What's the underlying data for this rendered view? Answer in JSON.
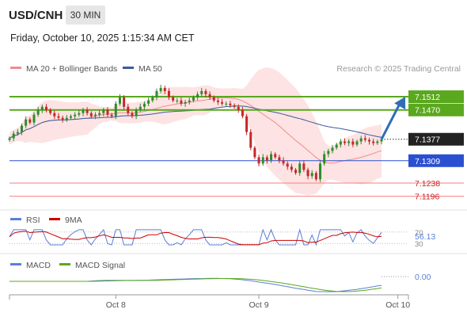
{
  "header": {
    "symbol": "USD/CNH",
    "timeframe": "30 MIN",
    "datetime": "Friday, October 10, 2025 1:15:34 AM CET"
  },
  "colors": {
    "ma20": "#f28c8c",
    "ma50": "#3b5b9c",
    "band_fill": "#fde0e0",
    "bull": "#2e8b2e",
    "bear": "#c62828",
    "resistance": "#5aa81e",
    "support_blue": "#2a4fd0",
    "support_red": "#f28080",
    "arrow": "#2f6db5",
    "rsi": "#5b7fd6",
    "rsi_ma": "#cc0000",
    "macd": "#5b7fd6",
    "macd_signal": "#5aa81e",
    "price_tag": "#222222"
  },
  "chart_data": [
    {
      "type": "candlestick",
      "panel": "price",
      "legend": [
        "MA 20 + Bollinger Bands",
        "MA 50"
      ],
      "legend_placement": "top-left",
      "credit": "Research © 2025 Trading Central",
      "ylim": [
        7.116,
        7.158
      ],
      "levels": [
        {
          "label": "7.1512",
          "value": 7.1512,
          "kind": "resistance"
        },
        {
          "label": "7.1470",
          "value": 7.147,
          "kind": "resistance"
        },
        {
          "label": "7.1377",
          "value": 7.1377,
          "kind": "current"
        },
        {
          "label": "7.1309",
          "value": 7.1309,
          "kind": "support_blue"
        },
        {
          "label": "7.1238",
          "value": 7.1238,
          "kind": "support_red"
        },
        {
          "label": "7.1196",
          "value": 7.1196,
          "kind": "support_red"
        }
      ],
      "closes": [
        7.138,
        7.1395,
        7.14,
        7.142,
        7.144,
        7.143,
        7.1455,
        7.147,
        7.148,
        7.147,
        7.146,
        7.145,
        7.1445,
        7.144,
        7.1445,
        7.145,
        7.1455,
        7.146,
        7.147,
        7.146,
        7.145,
        7.1455,
        7.146,
        7.147,
        7.1455,
        7.145,
        7.149,
        7.151,
        7.148,
        7.146,
        7.145,
        7.147,
        7.148,
        7.149,
        7.15,
        7.151,
        7.153,
        7.154,
        7.153,
        7.151,
        7.15,
        7.15,
        7.149,
        7.1495,
        7.15,
        7.151,
        7.152,
        7.153,
        7.152,
        7.151,
        7.15,
        7.1495,
        7.149,
        7.149,
        7.1485,
        7.148,
        7.147,
        7.145,
        7.14,
        7.135,
        7.132,
        7.13,
        7.132,
        7.131,
        7.133,
        7.132,
        7.131,
        7.13,
        7.129,
        7.128,
        7.127,
        7.13,
        7.128,
        7.126,
        7.127,
        7.125,
        7.13,
        7.133,
        7.134,
        7.135,
        7.136,
        7.137,
        7.1365,
        7.137,
        7.136,
        7.137,
        7.138,
        7.1375,
        7.137,
        7.1365,
        7.137,
        7.1377
      ],
      "x_ticks": [
        {
          "label": "Oct 8",
          "index": 26
        },
        {
          "label": "Oct 9",
          "index": 61
        },
        {
          "label": "Oct 10",
          "index": 95
        }
      ],
      "forecast": {
        "from": 7.1377,
        "to": 7.1512
      }
    },
    {
      "type": "line",
      "panel": "rsi",
      "legend": [
        "RSI",
        "9MA"
      ],
      "ylim": [
        0,
        100
      ],
      "ticks": [
        {
          "label": "70",
          "value": 70
        },
        {
          "label": "30",
          "value": 30
        }
      ],
      "value_label": "56.13",
      "value": 56.13
    },
    {
      "type": "line",
      "panel": "macd",
      "legend": [
        "MACD",
        "MACD Signal"
      ],
      "value_label": "0.00",
      "value": 0.0
    }
  ]
}
